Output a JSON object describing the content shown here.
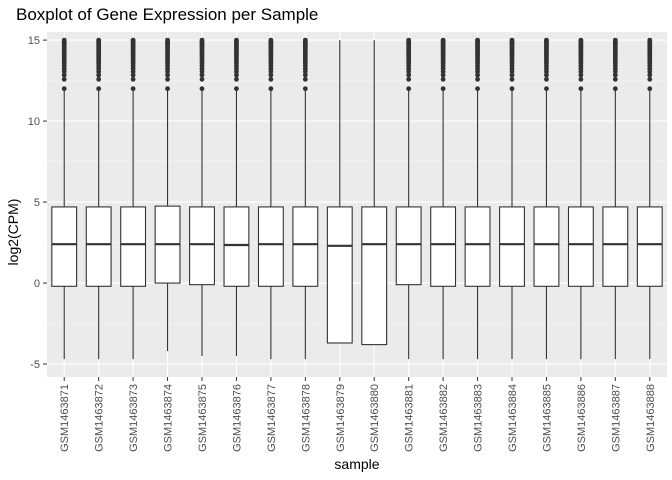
{
  "chart_data": {
    "type": "boxplot",
    "title": "Boxplot of Gene Expression per Sample",
    "xlabel": "sample",
    "ylabel": "log2(CPM)",
    "ylim": [
      -5.8,
      15.5
    ],
    "yticks": [
      -5,
      0,
      5,
      10,
      15
    ],
    "grid": true,
    "colors": {
      "panel": "#ebebeb",
      "grid_major": "#ffffff",
      "grid_minor": "#f5f5f5",
      "box_fill": "#ffffff",
      "box_line": "#333333",
      "tick_text": "#4d4d4d"
    },
    "categories": [
      "GSM1463871",
      "GSM1463872",
      "GSM1463873",
      "GSM1463874",
      "GSM1463875",
      "GSM1463876",
      "GSM1463877",
      "GSM1463878",
      "GSM1463879",
      "GSM1463880",
      "GSM1463881",
      "GSM1463882",
      "GSM1463883",
      "GSM1463884",
      "GSM1463885",
      "GSM1463886",
      "GSM1463887",
      "GSM1463888"
    ],
    "boxes": [
      {
        "low": -4.7,
        "q1": -0.2,
        "median": 2.4,
        "q3": 4.7,
        "high": 12.0,
        "outliers_from": 12.0,
        "max": 15.0
      },
      {
        "low": -4.7,
        "q1": -0.2,
        "median": 2.4,
        "q3": 4.7,
        "high": 12.0,
        "outliers_from": 12.0,
        "max": 15.0
      },
      {
        "low": -4.7,
        "q1": -0.2,
        "median": 2.4,
        "q3": 4.7,
        "high": 12.0,
        "outliers_from": 12.0,
        "max": 15.0
      },
      {
        "low": -4.2,
        "q1": 0.0,
        "median": 2.4,
        "q3": 4.75,
        "high": 12.0,
        "outliers_from": 12.0,
        "max": 15.0
      },
      {
        "low": -4.5,
        "q1": -0.1,
        "median": 2.4,
        "q3": 4.7,
        "high": 12.0,
        "outliers_from": 12.0,
        "max": 15.0
      },
      {
        "low": -4.5,
        "q1": -0.2,
        "median": 2.35,
        "q3": 4.7,
        "high": 12.0,
        "outliers_from": 12.0,
        "max": 15.0
      },
      {
        "low": -4.7,
        "q1": -0.2,
        "median": 2.4,
        "q3": 4.7,
        "high": 12.0,
        "outliers_from": 12.0,
        "max": 15.0
      },
      {
        "low": -4.7,
        "q1": -0.2,
        "median": 2.4,
        "q3": 4.7,
        "high": 12.0,
        "outliers_from": 12.0,
        "max": 15.0
      },
      {
        "low": -3.7,
        "q1": -3.7,
        "median": 2.3,
        "q3": 4.7,
        "high": 15.0,
        "outliers_from": null,
        "max": 15.0
      },
      {
        "low": -3.8,
        "q1": -3.8,
        "median": 2.4,
        "q3": 4.7,
        "high": 15.0,
        "outliers_from": null,
        "max": 15.0
      },
      {
        "low": -4.7,
        "q1": -0.1,
        "median": 2.4,
        "q3": 4.7,
        "high": 12.0,
        "outliers_from": 12.0,
        "max": 15.0
      },
      {
        "low": -4.7,
        "q1": -0.2,
        "median": 2.4,
        "q3": 4.7,
        "high": 12.0,
        "outliers_from": 12.0,
        "max": 15.0
      },
      {
        "low": -4.7,
        "q1": -0.2,
        "median": 2.4,
        "q3": 4.7,
        "high": 12.0,
        "outliers_from": 12.0,
        "max": 15.0
      },
      {
        "low": -4.7,
        "q1": -0.2,
        "median": 2.4,
        "q3": 4.7,
        "high": 12.0,
        "outliers_from": 12.0,
        "max": 15.0
      },
      {
        "low": -4.7,
        "q1": -0.2,
        "median": 2.4,
        "q3": 4.7,
        "high": 12.0,
        "outliers_from": 12.0,
        "max": 15.0
      },
      {
        "low": -4.7,
        "q1": -0.2,
        "median": 2.4,
        "q3": 4.7,
        "high": 12.0,
        "outliers_from": 12.0,
        "max": 15.0
      },
      {
        "low": -4.7,
        "q1": -0.2,
        "median": 2.4,
        "q3": 4.7,
        "high": 12.0,
        "outliers_from": 12.0,
        "max": 15.0
      },
      {
        "low": -4.7,
        "q1": -0.2,
        "median": 2.4,
        "q3": 4.7,
        "high": 12.0,
        "outliers_from": 12.0,
        "max": 15.0
      }
    ]
  }
}
